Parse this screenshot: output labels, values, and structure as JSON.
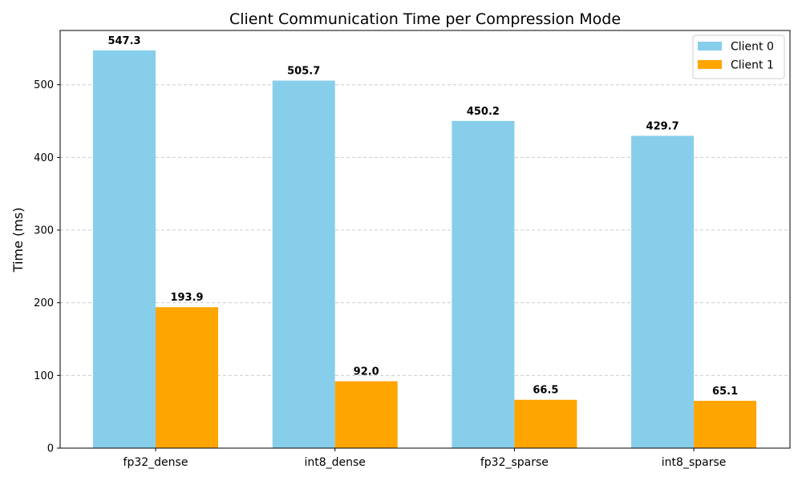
{
  "chart_data": {
    "type": "bar",
    "title": "Client Communication Time per Compression Mode",
    "xlabel": "",
    "ylabel": "Time (ms)",
    "categories": [
      "fp32_dense",
      "int8_dense",
      "fp32_sparse",
      "int8_sparse"
    ],
    "series": [
      {
        "name": "Client 0",
        "color": "#87CEEB",
        "values": [
          547.3,
          505.7,
          450.2,
          429.7
        ]
      },
      {
        "name": "Client 1",
        "color": "#FFA500",
        "values": [
          193.9,
          92.0,
          66.5,
          65.1
        ]
      }
    ],
    "data_labels": [
      [
        "547.3",
        "505.7",
        "450.2",
        "429.7"
      ],
      [
        "193.9",
        "92.0",
        "66.5",
        "65.1"
      ]
    ],
    "ylim": [
      0,
      574.665
    ],
    "yticks": [
      0,
      100,
      200,
      300,
      400,
      500
    ],
    "ytick_labels": [
      "0",
      "100",
      "200",
      "300",
      "400",
      "500"
    ],
    "grid": "y-dashed",
    "legend_position": "top-right"
  }
}
